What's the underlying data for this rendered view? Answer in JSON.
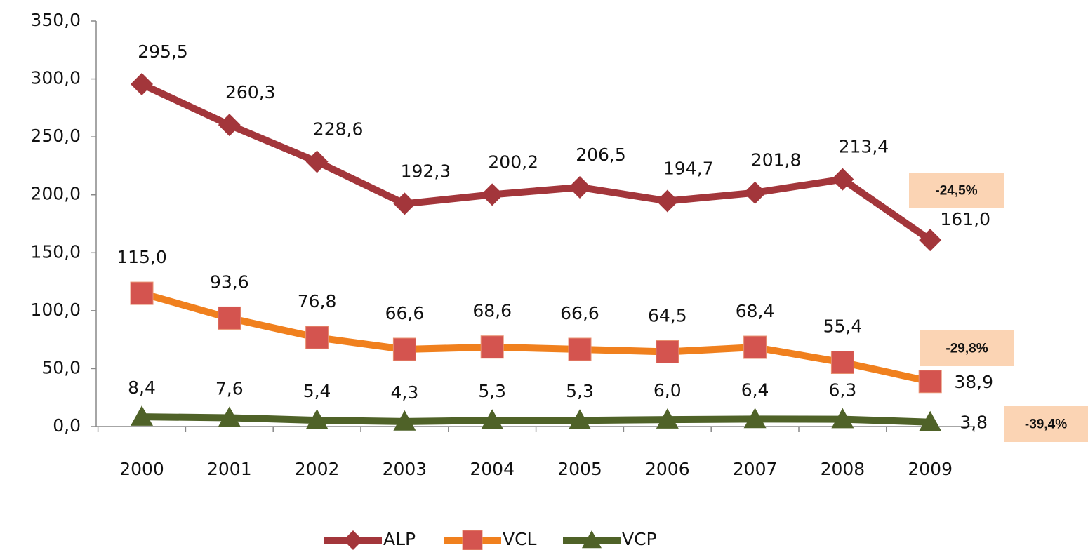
{
  "chart_data": {
    "type": "line",
    "categories": [
      "2000",
      "2001",
      "2002",
      "2003",
      "2004",
      "2005",
      "2006",
      "2007",
      "2008",
      "2009"
    ],
    "series": [
      {
        "name": "ALP",
        "color": "#a3363b",
        "marker": "diamond",
        "marker_color": "#a3363b",
        "values": [
          295.5,
          260.3,
          228.6,
          192.3,
          200.2,
          206.5,
          194.7,
          201.8,
          213.4,
          161.0
        ],
        "value_labels": [
          "295,5",
          "260,3",
          "228,6",
          "192,3",
          "200,2",
          "206,5",
          "194,7",
          "201,8",
          "213,4",
          "161,0"
        ]
      },
      {
        "name": "VCL",
        "color": "#f0801e",
        "marker": "square",
        "marker_color": "#d4544f",
        "values": [
          115.0,
          93.6,
          76.8,
          66.6,
          68.6,
          66.6,
          64.5,
          68.4,
          55.4,
          38.9
        ],
        "value_labels": [
          "115,0",
          "93,6",
          "76,8",
          "66,6",
          "68,6",
          "66,6",
          "64,5",
          "68,4",
          "55,4",
          "38,9"
        ]
      },
      {
        "name": "VCP",
        "color": "#4f6228",
        "marker": "triangle",
        "marker_color": "#4f6228",
        "values": [
          8.4,
          7.6,
          5.4,
          4.3,
          5.3,
          5.3,
          6.0,
          6.4,
          6.3,
          3.8
        ],
        "value_labels": [
          "8,4",
          "7,6",
          "5,4",
          "4,3",
          "5,3",
          "5,3",
          "6,0",
          "6,4",
          "6,3",
          "3,8"
        ]
      }
    ],
    "ylim": [
      0,
      350
    ],
    "yticks": [
      {
        "value": 0,
        "label": "0,0"
      },
      {
        "value": 50,
        "label": "50,0"
      },
      {
        "value": 100,
        "label": "100,0"
      },
      {
        "value": 150,
        "label": "150,0"
      },
      {
        "value": 200,
        "label": "200,0"
      },
      {
        "value": 250,
        "label": "250,0"
      },
      {
        "value": 300,
        "label": "300,0"
      },
      {
        "value": 350,
        "label": "350,0"
      }
    ],
    "annotations": [
      "-24,5%",
      "-29,8%",
      "-39,4%"
    ],
    "annotation_color": "#fbd4b4",
    "legend": "bottom"
  }
}
